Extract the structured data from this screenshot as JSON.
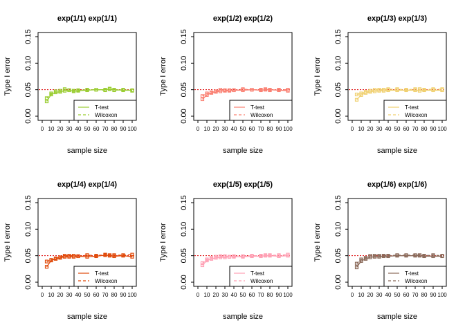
{
  "chart_data": [
    {
      "type": "line",
      "title": "exp(1/1) exp(1/1)",
      "xlabel": "sample size",
      "ylabel": "Type I error",
      "xlim": [
        0,
        100
      ],
      "ylim": [
        0,
        0.15
      ],
      "xticks": [
        0,
        10,
        20,
        30,
        40,
        50,
        60,
        70,
        80,
        90,
        100
      ],
      "yticks": [
        "0.00",
        "0.05",
        "0.10",
        "0.15"
      ],
      "reference_line": 0.05,
      "color": "#9acd32",
      "legend": {
        "entries": [
          "T-test",
          "Wilcoxon"
        ],
        "position": "bottom-right"
      },
      "x": [
        5,
        10,
        15,
        20,
        25,
        30,
        35,
        40,
        50,
        60,
        70,
        75,
        80,
        90,
        100
      ],
      "series": [
        {
          "name": "T-test",
          "values": [
            0.028,
            0.041,
            0.045,
            0.046,
            0.048,
            0.049,
            0.047,
            0.048,
            0.049,
            0.05,
            0.05,
            0.051,
            0.05,
            0.049,
            0.049
          ]
        },
        {
          "name": "Wilcoxon",
          "values": [
            0.034,
            0.043,
            0.047,
            0.048,
            0.051,
            0.049,
            0.048,
            0.049,
            0.05,
            0.05,
            0.049,
            0.052,
            0.049,
            0.05,
            0.048
          ]
        }
      ]
    },
    {
      "type": "line",
      "title": "exp(1/2) exp(1/2)",
      "xlabel": "sample size",
      "ylabel": "Type I error",
      "xlim": [
        0,
        100
      ],
      "ylim": [
        0,
        0.15
      ],
      "xticks": [
        0,
        10,
        20,
        30,
        40,
        50,
        60,
        70,
        80,
        90,
        100
      ],
      "yticks": [
        "0.00",
        "0.05",
        "0.10",
        "0.15"
      ],
      "reference_line": 0.05,
      "color": "#fa8072",
      "legend": {
        "entries": [
          "T-test",
          "Wilcoxon"
        ],
        "position": "bottom-right"
      },
      "x": [
        5,
        10,
        15,
        20,
        25,
        30,
        35,
        40,
        50,
        60,
        70,
        75,
        80,
        90,
        100
      ],
      "series": [
        {
          "name": "T-test",
          "values": [
            0.032,
            0.04,
            0.044,
            0.046,
            0.047,
            0.048,
            0.048,
            0.049,
            0.049,
            0.05,
            0.049,
            0.05,
            0.05,
            0.049,
            0.048
          ]
        },
        {
          "name": "Wilcoxon",
          "values": [
            0.038,
            0.043,
            0.045,
            0.047,
            0.05,
            0.049,
            0.049,
            0.049,
            0.051,
            0.05,
            0.05,
            0.051,
            0.049,
            0.05,
            0.05
          ]
        }
      ]
    },
    {
      "type": "line",
      "title": "exp(1/3) exp(1/3)",
      "xlabel": "sample size",
      "ylabel": "Type I error",
      "xlim": [
        0,
        100
      ],
      "ylim": [
        0,
        0.15
      ],
      "xticks": [
        0,
        10,
        20,
        30,
        40,
        50,
        60,
        70,
        80,
        90,
        100
      ],
      "yticks": [
        "0.00",
        "0.05",
        "0.10",
        "0.15"
      ],
      "reference_line": 0.05,
      "color": "#f0d070",
      "legend": {
        "entries": [
          "T-test",
          "Wilcoxon"
        ],
        "position": "bottom-right"
      },
      "x": [
        5,
        10,
        15,
        20,
        25,
        30,
        35,
        40,
        50,
        60,
        70,
        75,
        80,
        90,
        100
      ],
      "series": [
        {
          "name": "T-test",
          "values": [
            0.031,
            0.04,
            0.044,
            0.046,
            0.047,
            0.048,
            0.048,
            0.049,
            0.049,
            0.049,
            0.049,
            0.048,
            0.049,
            0.049,
            0.049
          ]
        },
        {
          "name": "Wilcoxon",
          "values": [
            0.041,
            0.043,
            0.046,
            0.048,
            0.05,
            0.05,
            0.05,
            0.051,
            0.051,
            0.05,
            0.051,
            0.051,
            0.05,
            0.051,
            0.051
          ]
        }
      ]
    },
    {
      "type": "line",
      "title": "exp(1/4) exp(1/4)",
      "xlabel": "sample size",
      "ylabel": "Type I error",
      "xlim": [
        0,
        100
      ],
      "ylim": [
        0,
        0.15
      ],
      "xticks": [
        0,
        10,
        20,
        30,
        40,
        50,
        60,
        70,
        80,
        90,
        100
      ],
      "yticks": [
        "0.00",
        "0.05",
        "0.10",
        "0.15"
      ],
      "reference_line": 0.05,
      "color": "#e04a0a",
      "legend": {
        "entries": [
          "T-test",
          "Wilcoxon"
        ],
        "position": "bottom-right"
      },
      "x": [
        5,
        10,
        15,
        20,
        25,
        30,
        35,
        40,
        50,
        60,
        70,
        75,
        80,
        90,
        100
      ],
      "series": [
        {
          "name": "T-test",
          "values": [
            0.029,
            0.041,
            0.044,
            0.046,
            0.048,
            0.048,
            0.048,
            0.049,
            0.048,
            0.049,
            0.051,
            0.05,
            0.049,
            0.05,
            0.048
          ]
        },
        {
          "name": "Wilcoxon",
          "values": [
            0.039,
            0.042,
            0.045,
            0.047,
            0.05,
            0.05,
            0.05,
            0.049,
            0.051,
            0.05,
            0.052,
            0.051,
            0.051,
            0.051,
            0.052
          ]
        }
      ]
    },
    {
      "type": "line",
      "title": "exp(1/5) exp(1/5)",
      "xlabel": "sample size",
      "ylabel": "Type I error",
      "xlim": [
        0,
        100
      ],
      "ylim": [
        0,
        0.15
      ],
      "xticks": [
        0,
        10,
        20,
        30,
        40,
        50,
        60,
        70,
        80,
        90,
        100
      ],
      "yticks": [
        "0.00",
        "0.05",
        "0.10",
        "0.15"
      ],
      "reference_line": 0.05,
      "color": "#ffa0b4",
      "legend": {
        "entries": [
          "T-test",
          "Wilcoxon"
        ],
        "position": "bottom-right"
      },
      "x": [
        5,
        10,
        15,
        20,
        25,
        30,
        35,
        40,
        50,
        60,
        70,
        75,
        80,
        90,
        100
      ],
      "series": [
        {
          "name": "T-test",
          "values": [
            0.032,
            0.041,
            0.044,
            0.046,
            0.047,
            0.047,
            0.048,
            0.048,
            0.048,
            0.049,
            0.049,
            0.05,
            0.05,
            0.049,
            0.05
          ]
        },
        {
          "name": "Wilcoxon",
          "values": [
            0.036,
            0.043,
            0.046,
            0.048,
            0.049,
            0.049,
            0.048,
            0.049,
            0.049,
            0.05,
            0.05,
            0.051,
            0.051,
            0.051,
            0.052
          ]
        }
      ]
    },
    {
      "type": "line",
      "title": "exp(1/6) exp(1/6)",
      "xlabel": "sample size",
      "ylabel": "Type I error",
      "xlim": [
        0,
        100
      ],
      "ylim": [
        0,
        0.15
      ],
      "xticks": [
        0,
        10,
        20,
        30,
        40,
        50,
        60,
        70,
        80,
        90,
        100
      ],
      "yticks": [
        "0.00",
        "0.05",
        "0.10",
        "0.15"
      ],
      "reference_line": 0.05,
      "color": "#8b6a5a",
      "legend": {
        "entries": [
          "T-test",
          "Wilcoxon"
        ],
        "position": "bottom-right"
      },
      "x": [
        5,
        10,
        15,
        20,
        25,
        30,
        35,
        40,
        50,
        60,
        70,
        75,
        80,
        90,
        100
      ],
      "series": [
        {
          "name": "T-test",
          "values": [
            0.028,
            0.04,
            0.044,
            0.047,
            0.048,
            0.048,
            0.049,
            0.049,
            0.05,
            0.05,
            0.05,
            0.05,
            0.049,
            0.049,
            0.049
          ]
        },
        {
          "name": "Wilcoxon",
          "values": [
            0.035,
            0.043,
            0.046,
            0.05,
            0.05,
            0.05,
            0.05,
            0.05,
            0.051,
            0.051,
            0.051,
            0.051,
            0.05,
            0.051,
            0.05
          ]
        }
      ]
    }
  ]
}
